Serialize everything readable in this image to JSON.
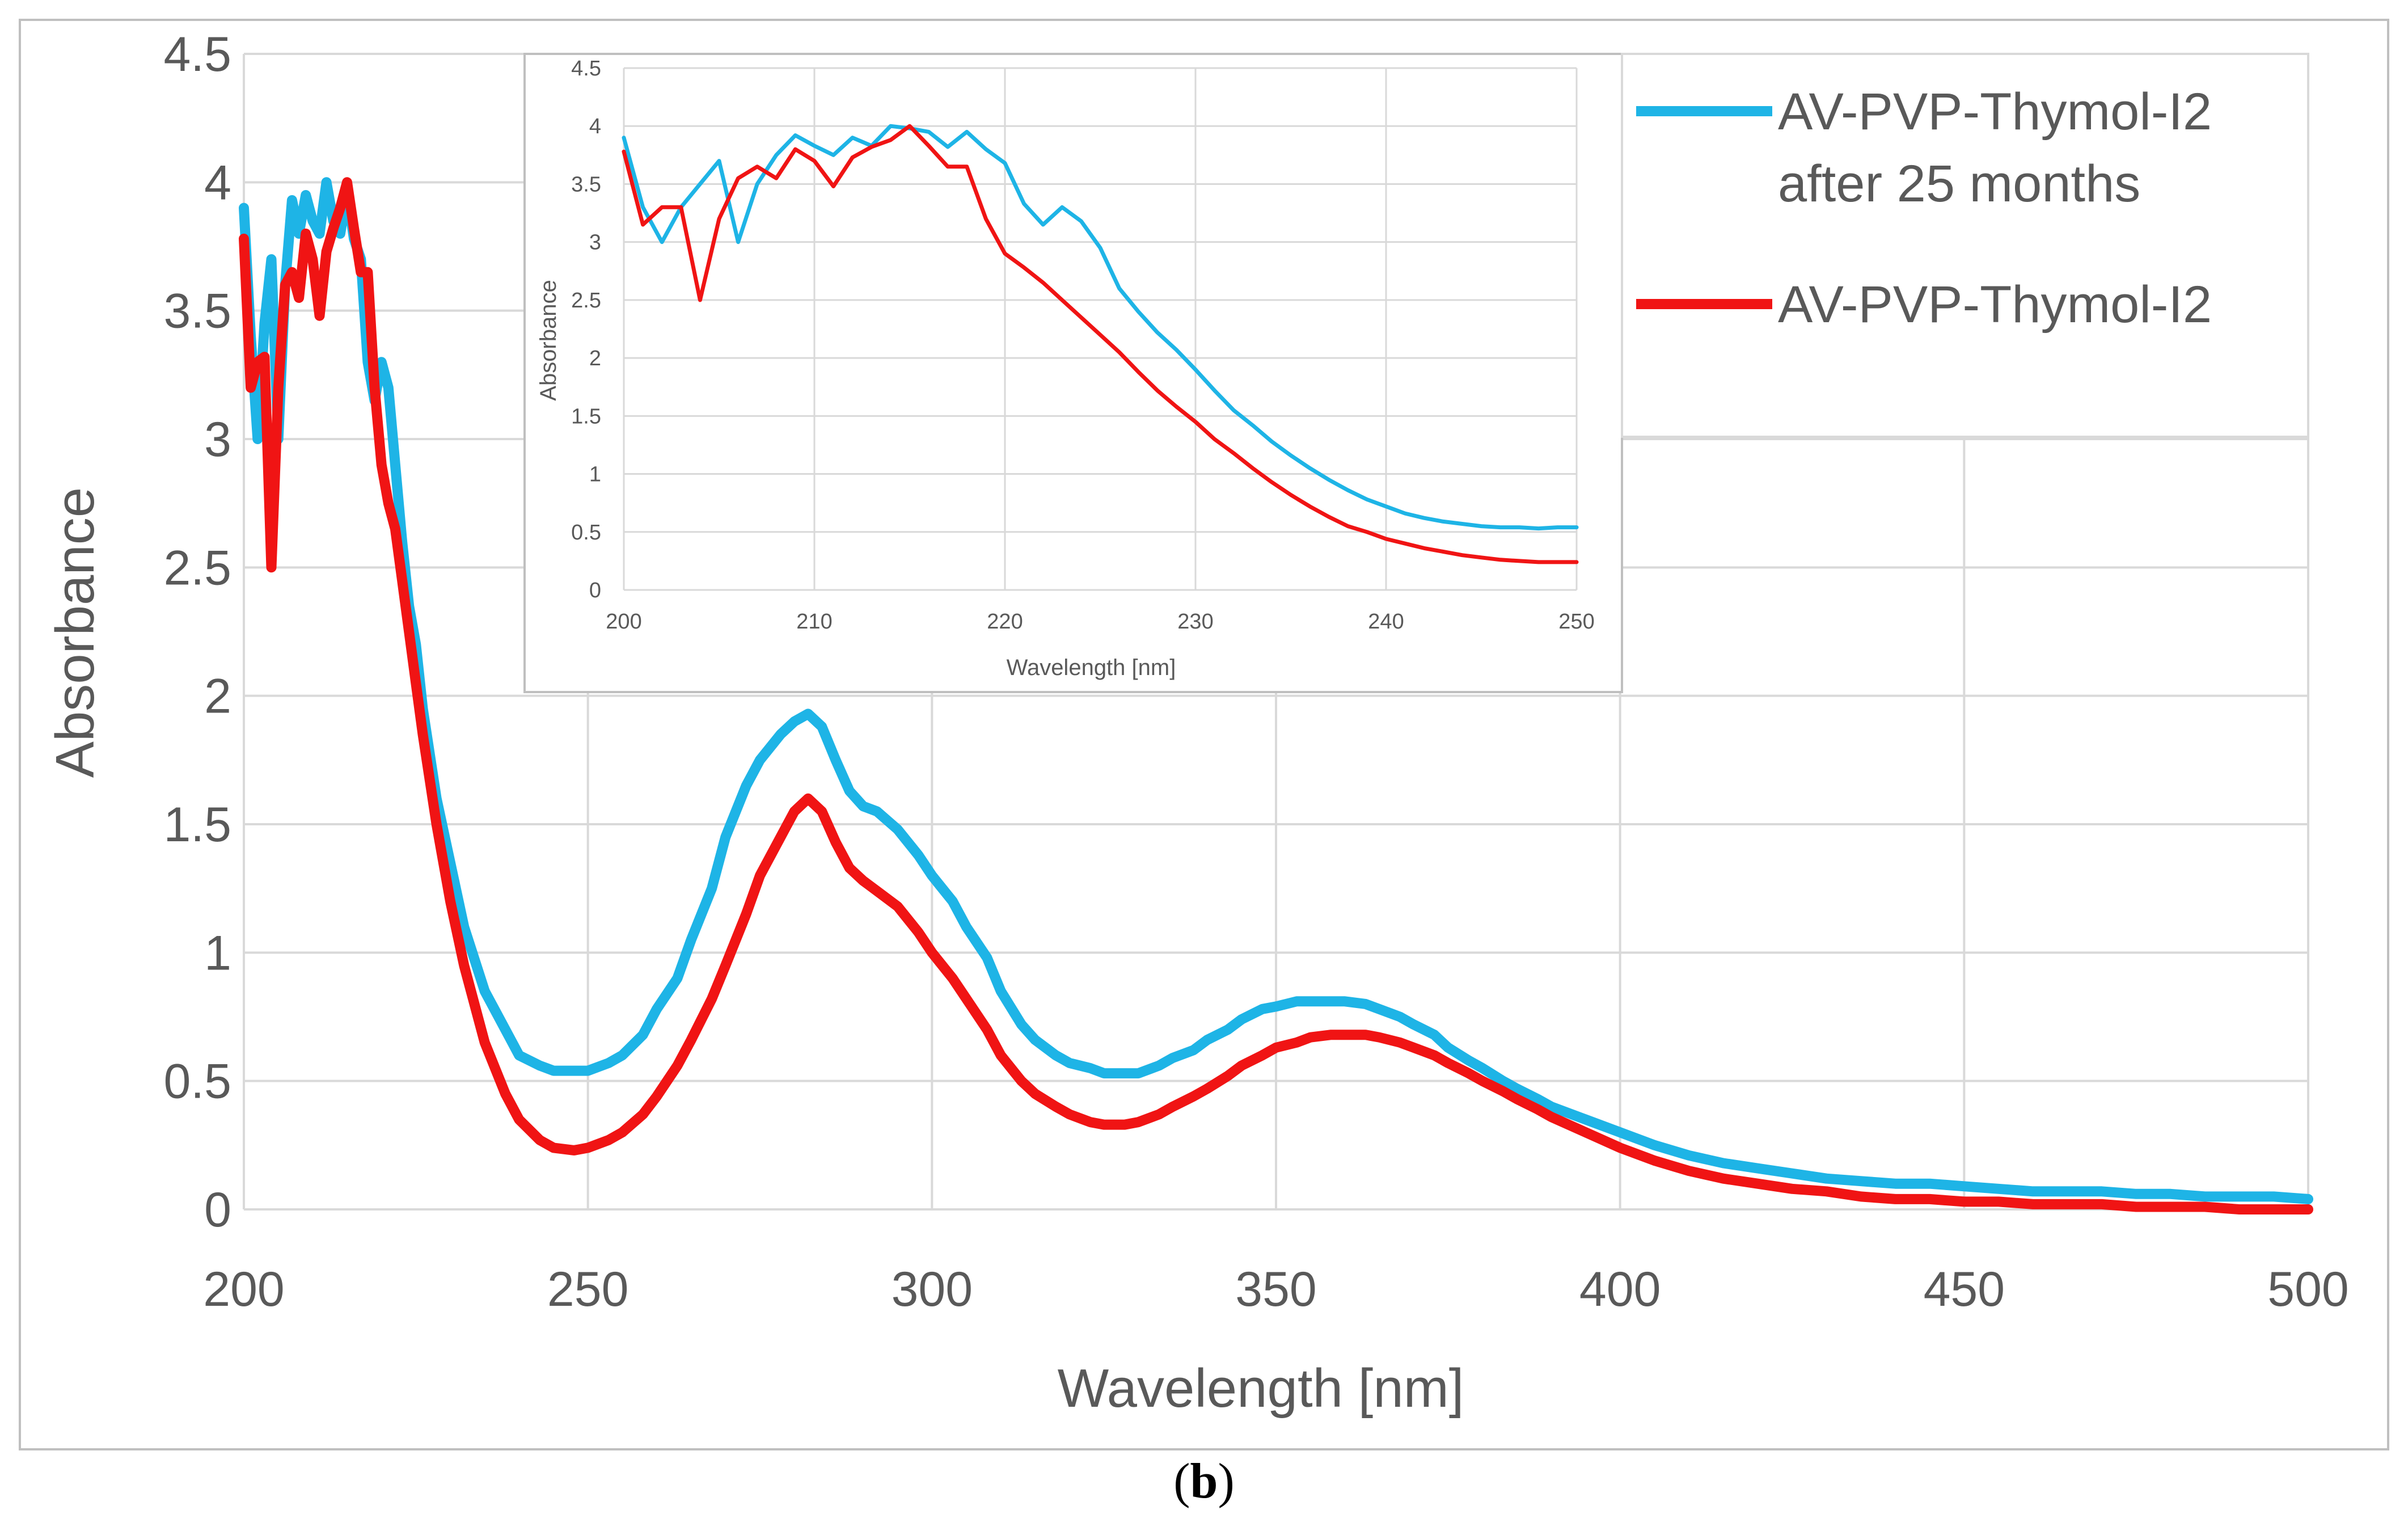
{
  "caption": {
    "open": "(",
    "letter": "b",
    "close": ")"
  },
  "colors": {
    "series_1": "#1EB4E6",
    "series_2": "#F01414",
    "grid": "#D9D9D9",
    "frame": "#BFBFBF",
    "text": "#595959"
  },
  "chart_data": [
    {
      "id": "main",
      "type": "line",
      "title": "",
      "xlabel": "Wavelength [nm]",
      "ylabel": "Absorbance",
      "xlim": [
        200,
        500
      ],
      "ylim": [
        0,
        4.5
      ],
      "xticks": [
        "200",
        "250",
        "300",
        "350",
        "400",
        "450",
        "500"
      ],
      "yticks": [
        "0",
        "0.5",
        "1",
        "1.5",
        "2",
        "2.5",
        "3",
        "3.5",
        "4",
        "4.5"
      ],
      "grid": true,
      "legend": {
        "position": "top-right",
        "entries": [
          {
            "series": 0,
            "lines": [
              "AV-PVP-Thymol-I2",
              "after 25 months"
            ]
          },
          {
            "series": 1,
            "lines": [
              "AV-PVP-Thymol-I2"
            ]
          }
        ]
      },
      "series": [
        {
          "name": "AV-PVP-Thymol-I2 after 25 months",
          "x": [
            200,
            201,
            202,
            203,
            204,
            205,
            206,
            207,
            208,
            209,
            210,
            211,
            212,
            213,
            214,
            215,
            216,
            217,
            218,
            219,
            220,
            221,
            222,
            223,
            224,
            225,
            226,
            228,
            230,
            232,
            235,
            238,
            240,
            243,
            245,
            248,
            250,
            253,
            255,
            258,
            260,
            263,
            265,
            268,
            270,
            273,
            275,
            278,
            280,
            282,
            284,
            286,
            288,
            290,
            292,
            295,
            298,
            300,
            303,
            305,
            308,
            310,
            313,
            315,
            318,
            320,
            323,
            325,
            328,
            330,
            333,
            335,
            338,
            340,
            343,
            345,
            348,
            350,
            353,
            355,
            358,
            360,
            363,
            365,
            368,
            370,
            373,
            375,
            378,
            380,
            383,
            385,
            388,
            390,
            395,
            400,
            405,
            410,
            415,
            420,
            425,
            430,
            435,
            440,
            445,
            450,
            455,
            460,
            465,
            470,
            475,
            480,
            485,
            490,
            495,
            500
          ],
          "y": [
            3.9,
            3.4,
            3.0,
            3.45,
            3.7,
            3.0,
            3.6,
            3.93,
            3.8,
            3.95,
            3.85,
            3.8,
            4.0,
            3.85,
            3.8,
            3.96,
            3.78,
            3.7,
            3.3,
            3.15,
            3.3,
            3.2,
            2.9,
            2.6,
            2.35,
            2.2,
            1.95,
            1.6,
            1.35,
            1.1,
            0.85,
            0.7,
            0.6,
            0.56,
            0.54,
            0.54,
            0.54,
            0.57,
            0.6,
            0.68,
            0.78,
            0.9,
            1.05,
            1.25,
            1.45,
            1.65,
            1.75,
            1.85,
            1.9,
            1.93,
            1.88,
            1.75,
            1.63,
            1.57,
            1.55,
            1.48,
            1.38,
            1.3,
            1.2,
            1.1,
            0.98,
            0.85,
            0.72,
            0.66,
            0.6,
            0.57,
            0.55,
            0.53,
            0.53,
            0.53,
            0.56,
            0.59,
            0.62,
            0.66,
            0.7,
            0.74,
            0.78,
            0.79,
            0.81,
            0.81,
            0.81,
            0.81,
            0.8,
            0.78,
            0.75,
            0.72,
            0.68,
            0.63,
            0.58,
            0.55,
            0.5,
            0.47,
            0.43,
            0.4,
            0.35,
            0.3,
            0.25,
            0.21,
            0.18,
            0.16,
            0.14,
            0.12,
            0.11,
            0.1,
            0.1,
            0.09,
            0.08,
            0.07,
            0.07,
            0.07,
            0.06,
            0.06,
            0.05,
            0.05,
            0.05,
            0.04
          ]
        },
        {
          "name": "AV-PVP-Thymol-I2",
          "x": [
            200,
            201,
            202,
            203,
            204,
            205,
            206,
            207,
            208,
            209,
            210,
            211,
            212,
            213,
            214,
            215,
            216,
            217,
            218,
            219,
            220,
            221,
            222,
            223,
            224,
            225,
            226,
            228,
            230,
            232,
            235,
            238,
            240,
            243,
            245,
            248,
            250,
            253,
            255,
            258,
            260,
            263,
            265,
            268,
            270,
            273,
            275,
            278,
            280,
            282,
            284,
            286,
            288,
            290,
            292,
            295,
            298,
            300,
            303,
            305,
            308,
            310,
            313,
            315,
            318,
            320,
            323,
            325,
            328,
            330,
            333,
            335,
            338,
            340,
            343,
            345,
            348,
            350,
            353,
            355,
            358,
            360,
            363,
            365,
            368,
            370,
            373,
            375,
            378,
            380,
            383,
            385,
            388,
            390,
            395,
            400,
            405,
            410,
            415,
            420,
            425,
            430,
            435,
            440,
            445,
            450,
            455,
            460,
            465,
            470,
            475,
            480,
            485,
            490,
            495,
            500
          ],
          "y": [
            3.78,
            3.2,
            3.3,
            3.32,
            2.5,
            3.2,
            3.6,
            3.65,
            3.55,
            3.8,
            3.7,
            3.48,
            3.73,
            3.82,
            3.9,
            4.0,
            3.82,
            3.65,
            3.65,
            3.2,
            2.9,
            2.75,
            2.65,
            2.45,
            2.25,
            2.05,
            1.85,
            1.5,
            1.2,
            0.95,
            0.65,
            0.45,
            0.35,
            0.27,
            0.24,
            0.23,
            0.24,
            0.27,
            0.3,
            0.37,
            0.44,
            0.56,
            0.66,
            0.82,
            0.95,
            1.15,
            1.3,
            1.45,
            1.55,
            1.6,
            1.55,
            1.43,
            1.33,
            1.28,
            1.24,
            1.18,
            1.08,
            1.0,
            0.9,
            0.82,
            0.7,
            0.6,
            0.5,
            0.45,
            0.4,
            0.37,
            0.34,
            0.33,
            0.33,
            0.34,
            0.37,
            0.4,
            0.44,
            0.47,
            0.52,
            0.56,
            0.6,
            0.63,
            0.65,
            0.67,
            0.68,
            0.68,
            0.68,
            0.67,
            0.65,
            0.63,
            0.6,
            0.57,
            0.53,
            0.5,
            0.46,
            0.43,
            0.39,
            0.36,
            0.3,
            0.24,
            0.19,
            0.15,
            0.12,
            0.1,
            0.08,
            0.07,
            0.05,
            0.04,
            0.04,
            0.03,
            0.03,
            0.02,
            0.02,
            0.02,
            0.01,
            0.01,
            0.01,
            0.0,
            0.0,
            0.0
          ]
        }
      ]
    },
    {
      "id": "inset",
      "type": "line",
      "title": "",
      "xlabel": "Wavelength [nm]",
      "ylabel": "Absorbance",
      "xlim": [
        200,
        250
      ],
      "ylim": [
        0,
        4.5
      ],
      "xticks": [
        "200",
        "210",
        "220",
        "230",
        "240",
        "250"
      ],
      "yticks": [
        "0",
        "0.5",
        "1",
        "1.5",
        "2",
        "2.5",
        "3",
        "3.5",
        "4",
        "4.5"
      ],
      "grid": true,
      "series": [
        {
          "name": "AV-PVP-Thymol-I2 after 25 months",
          "x": [
            200,
            201,
            202,
            203,
            204,
            205,
            206,
            207,
            208,
            209,
            210,
            211,
            212,
            213,
            214,
            215,
            216,
            217,
            218,
            219,
            220,
            221,
            222,
            223,
            224,
            225,
            226,
            227,
            228,
            229,
            230,
            231,
            232,
            233,
            234,
            235,
            236,
            237,
            238,
            239,
            240,
            241,
            242,
            243,
            244,
            245,
            246,
            247,
            248,
            249,
            250
          ],
          "y": [
            3.9,
            3.3,
            3.0,
            3.3,
            3.5,
            3.7,
            3.0,
            3.5,
            3.75,
            3.92,
            3.83,
            3.75,
            3.9,
            3.83,
            4.0,
            3.98,
            3.95,
            3.82,
            3.95,
            3.8,
            3.68,
            3.33,
            3.15,
            3.3,
            3.18,
            2.95,
            2.6,
            2.4,
            2.22,
            2.07,
            1.9,
            1.72,
            1.55,
            1.42,
            1.28,
            1.16,
            1.05,
            0.95,
            0.86,
            0.78,
            0.72,
            0.66,
            0.62,
            0.59,
            0.57,
            0.55,
            0.54,
            0.54,
            0.53,
            0.54,
            0.54
          ]
        },
        {
          "name": "AV-PVP-Thymol-I2",
          "x": [
            200,
            201,
            202,
            203,
            204,
            205,
            206,
            207,
            208,
            209,
            210,
            211,
            212,
            213,
            214,
            215,
            216,
            217,
            218,
            219,
            220,
            221,
            222,
            223,
            224,
            225,
            226,
            227,
            228,
            229,
            230,
            231,
            232,
            233,
            234,
            235,
            236,
            237,
            238,
            239,
            240,
            241,
            242,
            243,
            244,
            245,
            246,
            247,
            248,
            249,
            250
          ],
          "y": [
            3.78,
            3.15,
            3.3,
            3.3,
            2.5,
            3.2,
            3.55,
            3.65,
            3.55,
            3.8,
            3.7,
            3.48,
            3.73,
            3.82,
            3.88,
            4.0,
            3.83,
            3.65,
            3.65,
            3.2,
            2.9,
            2.78,
            2.65,
            2.5,
            2.35,
            2.2,
            2.05,
            1.88,
            1.72,
            1.58,
            1.45,
            1.3,
            1.18,
            1.05,
            0.93,
            0.82,
            0.72,
            0.63,
            0.55,
            0.5,
            0.44,
            0.4,
            0.36,
            0.33,
            0.3,
            0.28,
            0.26,
            0.25,
            0.24,
            0.24,
            0.24
          ]
        }
      ]
    }
  ]
}
